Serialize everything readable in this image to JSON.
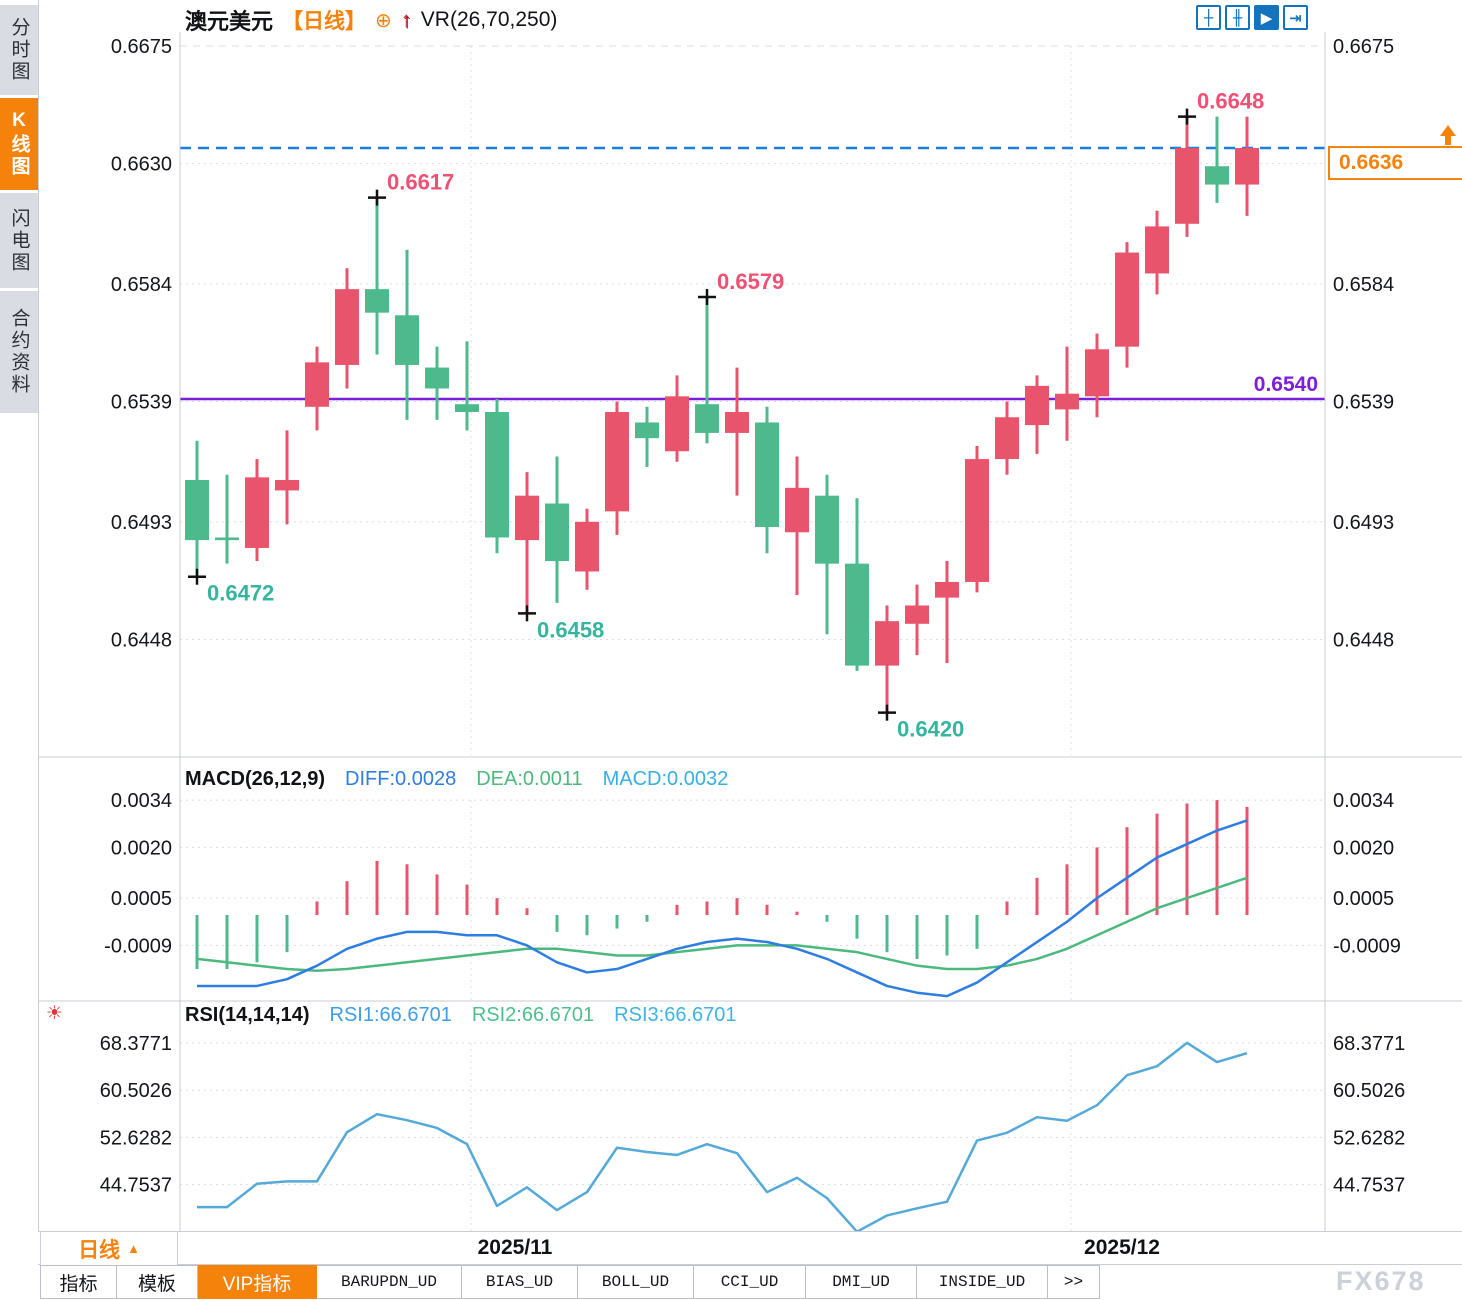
{
  "header": {
    "symbol": "澳元美元",
    "period": "【日线】",
    "plus_icon": "⊕",
    "up_arrow_icon": "↑",
    "indicator_label": "VR(26,70,250)"
  },
  "sidebar": {
    "tabs": [
      {
        "label": "分时图",
        "active": false
      },
      {
        "label": "K线图",
        "active": true
      },
      {
        "label": "闪电图",
        "active": false
      },
      {
        "label": "合约资料",
        "active": false
      }
    ]
  },
  "toolbar": {
    "buttons": [
      {
        "name": "crosshair-icon",
        "glyph": "┼",
        "active": false
      },
      {
        "name": "axis-candles-icon",
        "glyph": "╫",
        "active": false
      },
      {
        "name": "auto-scale-icon",
        "glyph": "▶",
        "active": true
      },
      {
        "name": "dock-right-icon",
        "glyph": "⇥",
        "active": false
      }
    ]
  },
  "main_chart": {
    "y_axis": [
      "0.6675",
      "0.6630",
      "0.6584",
      "0.6539",
      "0.6493",
      "0.6448"
    ],
    "current_price": "0.6636",
    "current_price_value": 0.6636,
    "horizontal_line": {
      "label": "0.6540",
      "value": 0.654
    },
    "annotations": [
      {
        "text": "0.6472",
        "type": "low",
        "candle": 0,
        "value": 0.6472
      },
      {
        "text": "0.6617",
        "type": "high",
        "candle": 6,
        "value": 0.6617
      },
      {
        "text": "0.6458",
        "type": "low",
        "candle": 11,
        "value": 0.6458
      },
      {
        "text": "0.6579",
        "type": "high",
        "candle": 17,
        "value": 0.6579
      },
      {
        "text": "0.6420",
        "type": "low",
        "candle": 23,
        "value": 0.642
      },
      {
        "text": "0.6648",
        "type": "high",
        "candle": 33,
        "value": 0.6648
      }
    ]
  },
  "chart_data": {
    "type": "candlestick",
    "title": "澳元美元 日线 (AUD/USD daily) with MACD and RSI sub-panels",
    "x_axis_labels": [
      "2025/11",
      "2025/12"
    ],
    "y_range_main": [
      0.642,
      0.6675
    ],
    "candles": {
      "open": [
        0.6509,
        0.6487,
        0.6483,
        0.6505,
        0.6537,
        0.6553,
        0.6582,
        0.6572,
        0.6552,
        0.6538,
        0.6535,
        0.6486,
        0.65,
        0.6474,
        0.6497,
        0.6531,
        0.652,
        0.6538,
        0.6527,
        0.6531,
        0.6489,
        0.6503,
        0.6477,
        0.6438,
        0.6454,
        0.6464,
        0.647,
        0.6517,
        0.653,
        0.6536,
        0.6541,
        0.656,
        0.6588,
        0.6607,
        0.6629,
        0.6622
      ],
      "high": [
        0.6524,
        0.6511,
        0.6517,
        0.6528,
        0.656,
        0.659,
        0.6617,
        0.6597,
        0.656,
        0.6562,
        0.654,
        0.6512,
        0.6518,
        0.6498,
        0.6539,
        0.6537,
        0.6549,
        0.6579,
        0.6552,
        0.6537,
        0.6518,
        0.6511,
        0.6502,
        0.6461,
        0.6469,
        0.6478,
        0.6522,
        0.6539,
        0.6549,
        0.656,
        0.6565,
        0.66,
        0.6612,
        0.6648,
        0.6648,
        0.6648
      ],
      "low": [
        0.6472,
        0.6477,
        0.6478,
        0.6492,
        0.6528,
        0.6544,
        0.6557,
        0.6532,
        0.6532,
        0.6528,
        0.6481,
        0.6458,
        0.6462,
        0.6467,
        0.6488,
        0.6514,
        0.6516,
        0.6523,
        0.6503,
        0.6481,
        0.6465,
        0.645,
        0.6436,
        0.642,
        0.6442,
        0.6439,
        0.6466,
        0.6511,
        0.6519,
        0.6524,
        0.6533,
        0.6552,
        0.658,
        0.6602,
        0.6615,
        0.661
      ],
      "close": [
        0.6486,
        0.6486,
        0.651,
        0.6509,
        0.6554,
        0.6582,
        0.6573,
        0.6553,
        0.6544,
        0.6535,
        0.6487,
        0.6503,
        0.6478,
        0.6493,
        0.6535,
        0.6525,
        0.6541,
        0.6527,
        0.6535,
        0.6491,
        0.6506,
        0.6477,
        0.6438,
        0.6455,
        0.6461,
        0.647,
        0.6517,
        0.6533,
        0.6545,
        0.6542,
        0.6559,
        0.6596,
        0.6606,
        0.6636,
        0.6622,
        0.6636
      ]
    },
    "macd": {
      "params": "MACD(26,12,9)",
      "diff_label": "DIFF:0.0028",
      "dea_label": "DEA:0.0011",
      "macd_label": "MACD:0.0032",
      "y_axis": [
        "0.0034",
        "0.0020",
        "0.0005",
        "-0.0009"
      ],
      "histogram": [
        -0.0016,
        -0.0016,
        -0.0014,
        -0.0011,
        0.0004,
        0.001,
        0.0016,
        0.0015,
        0.0012,
        0.0009,
        0.0005,
        0.0002,
        -0.0005,
        -0.0006,
        -0.0004,
        -0.0002,
        0.0003,
        0.0004,
        0.0005,
        0.0003,
        0.0001,
        -0.0002,
        -0.0007,
        -0.0011,
        -0.0013,
        -0.0012,
        -0.001,
        0.0004,
        0.0011,
        0.0015,
        0.002,
        0.0026,
        0.003,
        0.0033,
        0.0034,
        0.0032
      ],
      "diff": [
        -0.0021,
        -0.0021,
        -0.0021,
        -0.0019,
        -0.0015,
        -0.001,
        -0.0007,
        -0.0005,
        -0.0005,
        -0.0006,
        -0.0006,
        -0.0009,
        -0.0014,
        -0.0017,
        -0.0016,
        -0.0013,
        -0.001,
        -0.0008,
        -0.0007,
        -0.0008,
        -0.001,
        -0.0013,
        -0.0017,
        -0.0021,
        -0.0023,
        -0.0024,
        -0.002,
        -0.0014,
        -0.0008,
        -0.0002,
        0.0005,
        0.0011,
        0.0017,
        0.0021,
        0.0025,
        0.0028
      ],
      "dea": [
        -0.0013,
        -0.0014,
        -0.0015,
        -0.0016,
        -0.00165,
        -0.0016,
        -0.0015,
        -0.0014,
        -0.0013,
        -0.0012,
        -0.0011,
        -0.001,
        -0.001,
        -0.0011,
        -0.0012,
        -0.0012,
        -0.0011,
        -0.001,
        -0.0009,
        -0.0009,
        -0.0009,
        -0.001,
        -0.0011,
        -0.0013,
        -0.0015,
        -0.0016,
        -0.0016,
        -0.0015,
        -0.0013,
        -0.001,
        -0.0006,
        -0.0002,
        0.0002,
        0.0005,
        0.0008,
        0.0011
      ]
    },
    "rsi": {
      "params": "RSI(14,14,14)",
      "labels": [
        "RSI1:66.6701",
        "RSI2:66.6701",
        "RSI3:66.6701"
      ],
      "y_axis": [
        "68.3771",
        "60.5026",
        "52.6282",
        "44.7537"
      ],
      "values": [
        41.0,
        41.0,
        44.9,
        45.3,
        45.3,
        53.5,
        56.5,
        55.5,
        54.2,
        51.5,
        41.2,
        44.3,
        40.5,
        43.5,
        50.9,
        50.2,
        49.7,
        51.5,
        50.0,
        43.5,
        45.9,
        42.5,
        36.9,
        39.6,
        40.8,
        41.9,
        52.1,
        53.4,
        56.0,
        55.4,
        58.0,
        63.0,
        64.5,
        68.4,
        65.2,
        66.67
      ]
    }
  },
  "bottom_bar": {
    "period_button": "日线",
    "period_arrow": "▲",
    "date_labels": [
      "2025/11",
      "2025/12"
    ],
    "watermark": "FX678"
  },
  "tabs": [
    "指标",
    "模板",
    "VIP指标",
    "BARUPDN_UD",
    "BIAS_UD",
    "BOLL_UD",
    "CCI_UD",
    "DMI_UD",
    "INSIDE_UD",
    ">>"
  ],
  "colors": {
    "up": "#e8546b",
    "down": "#4db98c",
    "accent_orange": "#f5820a",
    "purple_line": "#7b1fd8",
    "dashed_blue": "#1a7de0",
    "diff_line": "#2e7de0",
    "dea_line": "#4db87e",
    "macd_value_label": "#36aee0",
    "rsi_line": "#55a9d9",
    "rsi1_label": "#3f9de8",
    "rsi2_label": "#4dc08c",
    "rsi3_label": "#3cb4e4",
    "label_high": "#ef5073",
    "label_low": "#35b49e",
    "toolbar_blue": "#1273be",
    "grid": "#d9dce2",
    "separator": "#c9cdd5"
  }
}
